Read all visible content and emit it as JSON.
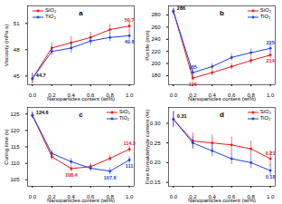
{
  "chart_data": [
    {
      "type": "line",
      "title": "a",
      "xlabel": "Nanoparticles content (wt%)",
      "ylabel": "Viscosity (mPa·s)",
      "x": [
        0,
        0.2,
        0.4,
        0.6,
        0.8,
        1.0
      ],
      "xlim": [
        -0.05,
        1.05
      ],
      "xticks": [
        {
          "value": 0,
          "label": "0.0"
        },
        0.2,
        0.4,
        0.6,
        0.8,
        {
          "value": 1,
          "label": "1.0"
        }
      ],
      "ylim": [
        44,
        53
      ],
      "yticks": [
        45,
        48,
        51
      ],
      "legend": "top-left",
      "marker": "circle",
      "series": [
        {
          "name": "SiO₂",
          "color": "#e41a1c",
          "values": [
            44.7,
            48.2,
            48.8,
            49.4,
            50.3,
            50.7
          ],
          "errors": [
            0.6,
            0.6,
            0.7,
            0.6,
            0.6,
            0.6
          ]
        },
        {
          "name": "TiO₂",
          "color": "#2040e0",
          "values": [
            44.7,
            47.8,
            48.2,
            49.0,
            49.4,
            49.6
          ],
          "errors": [
            0.6,
            0.5,
            0.6,
            0.5,
            0.5,
            0.5
          ]
        }
      ],
      "annotations": [
        {
          "x": 0,
          "y": 44.7,
          "text": "44.7",
          "series": null
        },
        {
          "x": 1.0,
          "y": 50.7,
          "text": "50.7",
          "series": "SiO₂"
        },
        {
          "x": 1.0,
          "y": 49.6,
          "text": "49.6",
          "series": "TiO₂"
        }
      ]
    },
    {
      "type": "line",
      "title": "b",
      "xlabel": "Nanoparticles content (wt%)",
      "ylabel": "Pot life (min)",
      "x": [
        0,
        0.2,
        0.4,
        0.6,
        0.8,
        1.0
      ],
      "xlim": [
        -0.05,
        1.05
      ],
      "xticks": [
        {
          "value": 0,
          "label": "0.0"
        },
        0.2,
        0.4,
        0.6,
        0.8,
        {
          "value": 1,
          "label": "1.0"
        }
      ],
      "ylim": [
        165,
        295
      ],
      "yticks": [
        180,
        200,
        220,
        240,
        260,
        280
      ],
      "legend": "top-right",
      "marker": "circle",
      "series": [
        {
          "name": "SiO₂",
          "color": "#e41a1c",
          "values": [
            286,
            176,
            185,
            195,
            205,
            214
          ],
          "errors": [
            5,
            5,
            5,
            5,
            6,
            6
          ]
        },
        {
          "name": "TiO₂",
          "color": "#2040e0",
          "values": [
            286,
            185,
            195,
            210,
            218,
            225
          ],
          "errors": [
            5,
            5,
            5,
            6,
            6,
            7
          ]
        }
      ],
      "annotations": [
        {
          "x": 0,
          "y": 286,
          "text": "286",
          "series": null
        },
        {
          "x": 0.2,
          "y": 176,
          "text": "176",
          "series": "SiO₂"
        },
        {
          "x": 0.2,
          "y": 185,
          "text": "185",
          "series": "TiO₂"
        },
        {
          "x": 1.0,
          "y": 214,
          "text": "214",
          "series": "SiO₂"
        },
        {
          "x": 1.0,
          "y": 225,
          "text": "225",
          "series": "TiO₂"
        }
      ]
    },
    {
      "type": "line",
      "title": "c",
      "xlabel": "Nanoparticles content (wt%)",
      "ylabel": "Curing time (s)",
      "x": [
        0,
        0.2,
        0.4,
        0.6,
        0.8,
        1.0
      ],
      "xlim": [
        -0.05,
        1.05
      ],
      "xticks": [
        {
          "value": 0,
          "label": "0.0"
        },
        0.2,
        0.4,
        0.6,
        0.8,
        {
          "value": 1,
          "label": "1.0"
        }
      ],
      "ylim": [
        103,
        127
      ],
      "yticks": [
        105,
        110,
        115,
        120,
        125
      ],
      "legend": "top-right",
      "marker": "circle",
      "series": [
        {
          "name": "SiO₂",
          "color": "#e41a1c",
          "values": [
            124.6,
            112,
            108.4,
            109,
            111.5,
            114.3
          ],
          "errors": [
            1,
            1,
            1,
            1,
            1,
            1
          ]
        },
        {
          "name": "TiO₂",
          "color": "#2040e0",
          "values": [
            124.6,
            113,
            110.5,
            108.5,
            107.6,
            111
          ],
          "errors": [
            1,
            1,
            1,
            1,
            1,
            1
          ]
        }
      ],
      "annotations": [
        {
          "x": 0,
          "y": 124.6,
          "text": "124.6",
          "series": null
        },
        {
          "x": 0.4,
          "y": 108.4,
          "text": "108.4",
          "series": "SiO₂"
        },
        {
          "x": 0.8,
          "y": 107.6,
          "text": "107.6",
          "series": "TiO₂"
        },
        {
          "x": 1.0,
          "y": 114.3,
          "text": "114.3",
          "series": "SiO₂"
        },
        {
          "x": 1.0,
          "y": 111,
          "text": "111",
          "series": "TiO₂"
        }
      ]
    },
    {
      "type": "line",
      "title": "d",
      "xlabel": "Nanoparticles content (wt%)",
      "ylabel": "Free formaldehyde content (%)",
      "x": [
        0,
        0.2,
        0.4,
        0.6,
        0.8,
        1.0
      ],
      "xlim": [
        -0.05,
        1.05
      ],
      "xticks": [
        {
          "value": 0,
          "label": "0.0"
        },
        0.2,
        0.4,
        0.6,
        0.8,
        {
          "value": 1,
          "label": "1.0"
        }
      ],
      "ylim": [
        0.14,
        0.34
      ],
      "yticks": [
        0.15,
        {
          "value": 0.2,
          "label": "0.20"
        },
        0.25,
        {
          "value": 0.3,
          "label": "0.30"
        }
      ],
      "legend": "top-right",
      "marker": "circle",
      "series": [
        {
          "name": "SiO₂",
          "color": "#e41a1c",
          "values": [
            0.31,
            0.255,
            0.25,
            0.245,
            0.235,
            0.21
          ],
          "errors": [
            0.02,
            0.02,
            0.02,
            0.02,
            0.02,
            0.02
          ]
        },
        {
          "name": "TiO₂",
          "color": "#2040e0",
          "values": [
            0.31,
            0.25,
            0.23,
            0.21,
            0.2,
            0.18
          ],
          "errors": [
            0.02,
            0.015,
            0.015,
            0.015,
            0.015,
            0.015
          ]
        }
      ],
      "annotations": [
        {
          "x": 0,
          "y": 0.31,
          "text": "0.31",
          "series": null
        },
        {
          "x": 1.0,
          "y": 0.21,
          "text": "0.21",
          "series": "SiO₂"
        },
        {
          "x": 1.0,
          "y": 0.18,
          "text": "0.18",
          "series": "TiO₂"
        }
      ]
    }
  ]
}
